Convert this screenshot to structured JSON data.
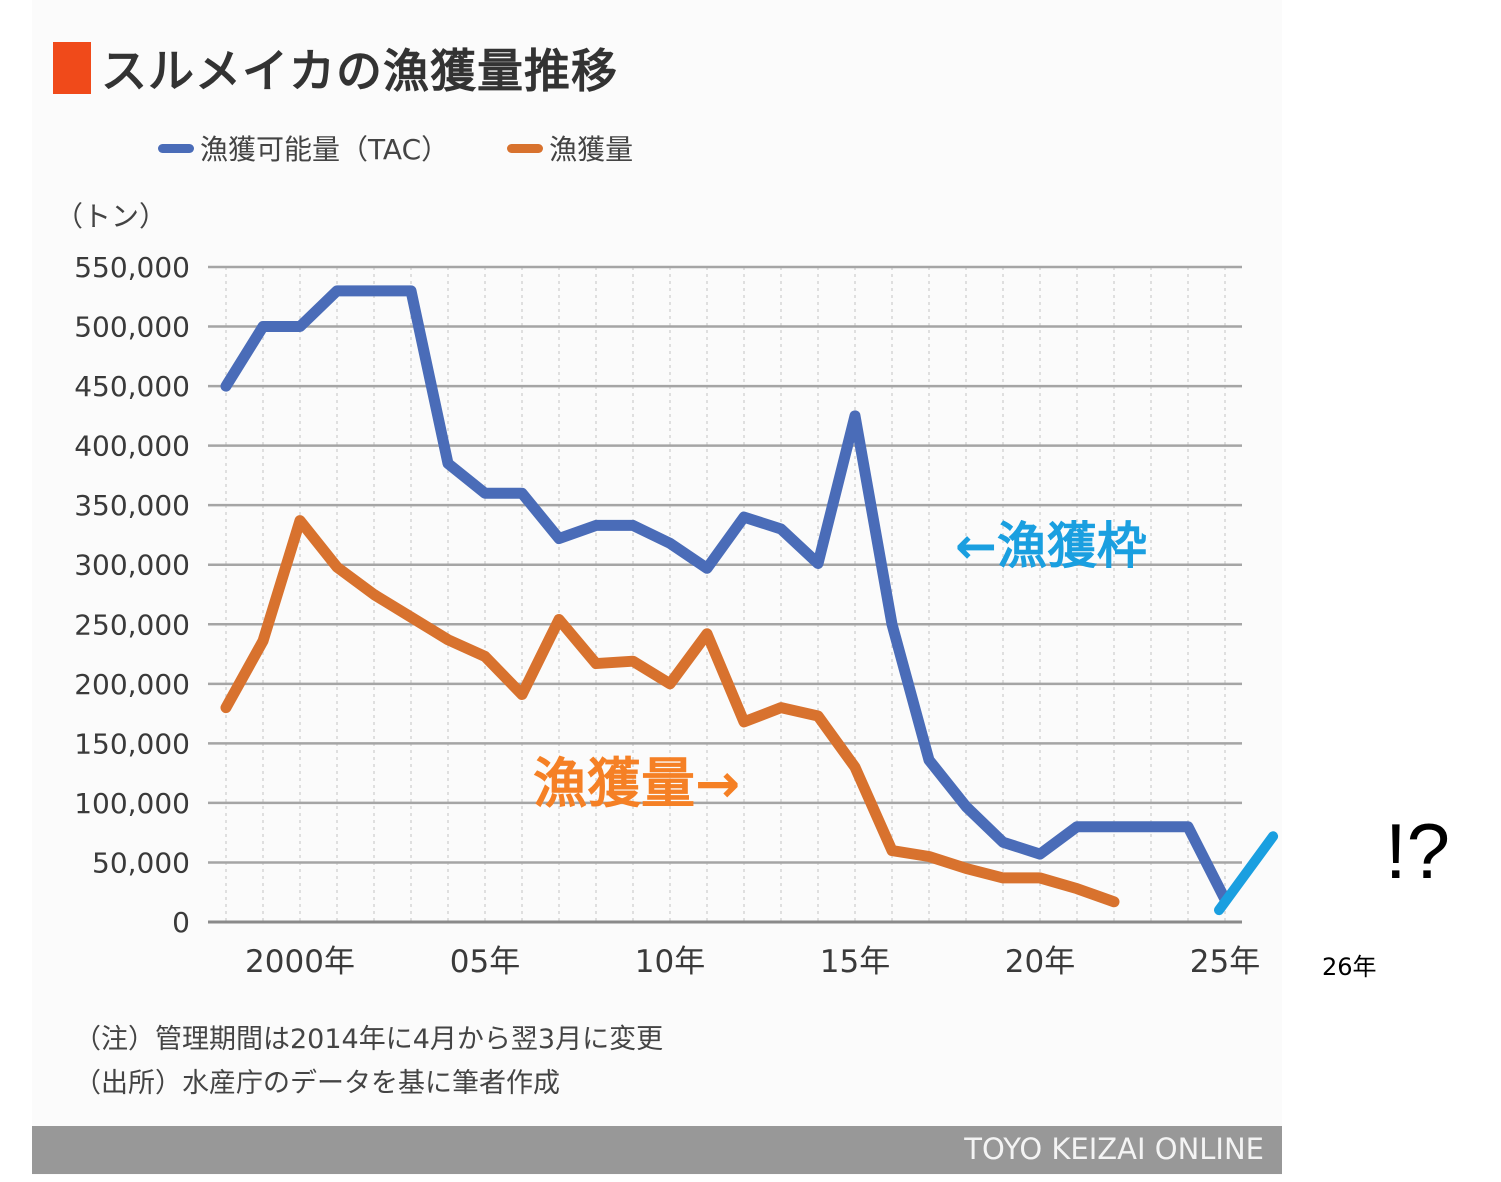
{
  "header": {
    "title": "スルメイカの漁獲量推移",
    "title_marker_color": "#f04a1a"
  },
  "notes": {
    "note": "（注）管理期間は2014年に4月から翌3月に変更",
    "source": "（出所）水産庁のデータを基に筆者作成"
  },
  "footer": {
    "brand": "TOYO KEIZAI ONLINE"
  },
  "chart_data": {
    "type": "line",
    "title": "スルメイカの漁獲量推移",
    "xlabel": "",
    "ylabel": "（トン）",
    "ylim": [
      0,
      550000
    ],
    "xlim": [
      1998,
      2025
    ],
    "grid": true,
    "legend_position": "top",
    "y_ticks": [
      {
        "value": 0,
        "label": "0"
      },
      {
        "value": 50000,
        "label": "50,000"
      },
      {
        "value": 100000,
        "label": "100,000"
      },
      {
        "value": 150000,
        "label": "150,000"
      },
      {
        "value": 200000,
        "label": "200,000"
      },
      {
        "value": 250000,
        "label": "250,000"
      },
      {
        "value": 300000,
        "label": "300,000"
      },
      {
        "value": 350000,
        "label": "350,000"
      },
      {
        "value": 400000,
        "label": "400,000"
      },
      {
        "value": 450000,
        "label": "450,000"
      },
      {
        "value": 500000,
        "label": "500,000"
      },
      {
        "value": 550000,
        "label": "550,000"
      }
    ],
    "x_ticks": [
      {
        "value": 2000,
        "label": "2000年"
      },
      {
        "value": 2005,
        "label": "05年"
      },
      {
        "value": 2010,
        "label": "10年"
      },
      {
        "value": 2015,
        "label": "15年"
      },
      {
        "value": 2020,
        "label": "20年"
      },
      {
        "value": 2025,
        "label": "25年"
      }
    ],
    "series": [
      {
        "name": "漁獲可能量（TAC）",
        "color": "#4a6cb8",
        "x": [
          1998,
          1999,
          2000,
          2001,
          2002,
          2003,
          2004,
          2005,
          2006,
          2007,
          2008,
          2009,
          2010,
          2011,
          2012,
          2013,
          2014,
          2015,
          2016,
          2017,
          2018,
          2019,
          2020,
          2021,
          2022,
          2023,
          2024,
          2025
        ],
        "values": [
          450000,
          500000,
          500000,
          530000,
          530000,
          530000,
          385000,
          360000,
          360000,
          322000,
          333000,
          333000,
          318000,
          297000,
          340000,
          330000,
          301000,
          425000,
          250000,
          136000,
          97000,
          67000,
          57000,
          80000,
          80000,
          80000,
          80000,
          19000
        ]
      },
      {
        "name": "漁獲量",
        "color": "#d8722e",
        "x": [
          1998,
          1999,
          2000,
          2001,
          2002,
          2003,
          2004,
          2005,
          2006,
          2007,
          2008,
          2009,
          2010,
          2011,
          2012,
          2013,
          2014,
          2015,
          2016,
          2017,
          2018,
          2019,
          2020,
          2021,
          2022
        ],
        "values": [
          180000,
          236000,
          337000,
          298000,
          275000,
          256000,
          237000,
          223000,
          191000,
          254000,
          217000,
          219000,
          200000,
          242000,
          168000,
          180000,
          173000,
          130000,
          60000,
          55000,
          45000,
          37000,
          37000,
          28000,
          17000
        ]
      }
    ],
    "annotations": {
      "tac_label": "←漁獲枠",
      "tac_label_color": "#1a9fe0",
      "catch_label": "漁獲量→",
      "catch_label_color": "#f58025",
      "extra_x_label": "26年",
      "exclaim": "!?",
      "projection_line": {
        "color": "#1a9fe0",
        "from": {
          "x": 2025,
          "y": 15000
        },
        "to": {
          "x": 2026.3,
          "y": 72000
        }
      }
    }
  }
}
